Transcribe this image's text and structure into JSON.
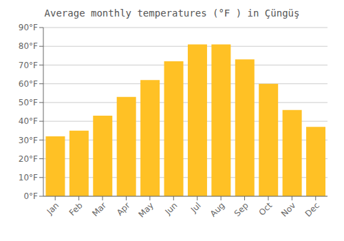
{
  "chart_data": {
    "type": "bar",
    "title": "Average monthly temperatures (°F ) in Çüngüş",
    "categories": [
      "Jan",
      "Feb",
      "Mar",
      "Apr",
      "May",
      "Jun",
      "Jul",
      "Aug",
      "Sep",
      "Oct",
      "Nov",
      "Dec"
    ],
    "values": [
      32,
      35,
      43,
      53,
      62,
      72,
      81,
      81,
      73,
      60,
      46,
      37
    ],
    "color": "#FFC125",
    "ylim": [
      0,
      90
    ],
    "yticks": [
      {
        "value": 0,
        "label": "0°F"
      },
      {
        "value": 10,
        "label": "10°F"
      },
      {
        "value": 20,
        "label": "20°F"
      },
      {
        "value": 30,
        "label": "30°F"
      },
      {
        "value": 40,
        "label": "40°F"
      },
      {
        "value": 50,
        "label": "50°F"
      },
      {
        "value": 60,
        "label": "60°F"
      },
      {
        "value": 70,
        "label": "70°F"
      },
      {
        "value": 80,
        "label": "80°F"
      },
      {
        "value": 90,
        "label": "90°F"
      }
    ],
    "grid": true
  }
}
